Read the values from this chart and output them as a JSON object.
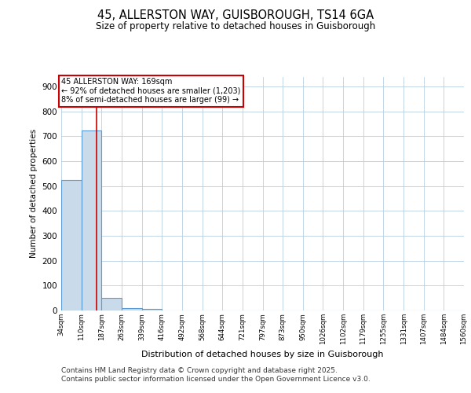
{
  "title1": "45, ALLERSTON WAY, GUISBOROUGH, TS14 6GA",
  "title2": "Size of property relative to detached houses in Guisborough",
  "xlabel": "Distribution of detached houses by size in Guisborough",
  "ylabel": "Number of detached properties",
  "footer": "Contains HM Land Registry data © Crown copyright and database right 2025.\nContains public sector information licensed under the Open Government Licence v3.0.",
  "bin_edges": [
    34,
    110,
    187,
    263,
    339,
    416,
    492,
    568,
    644,
    721,
    797,
    873,
    950,
    1026,
    1102,
    1179,
    1255,
    1331,
    1407,
    1484,
    1560
  ],
  "bar_heights": [
    525,
    725,
    50,
    10,
    5,
    1,
    0,
    0,
    0,
    0,
    0,
    0,
    0,
    0,
    0,
    0,
    0,
    0,
    0,
    0
  ],
  "bar_color": "#c9daea",
  "bar_edgecolor": "#5b9bd5",
  "bar_linewidth": 0.8,
  "grid_color": "#b8cfe0",
  "bg_color": "#ffffff",
  "red_line_x": 169,
  "annotation_text": "45 ALLERSTON WAY: 169sqm\n← 92% of detached houses are smaller (1,203)\n8% of semi-detached houses are larger (99) →",
  "annotation_bbox_color": "#ffffff",
  "annotation_bbox_edgecolor": "#cc0000",
  "ylim": [
    0,
    940
  ],
  "yticks": [
    0,
    100,
    200,
    300,
    400,
    500,
    600,
    700,
    800,
    900
  ]
}
